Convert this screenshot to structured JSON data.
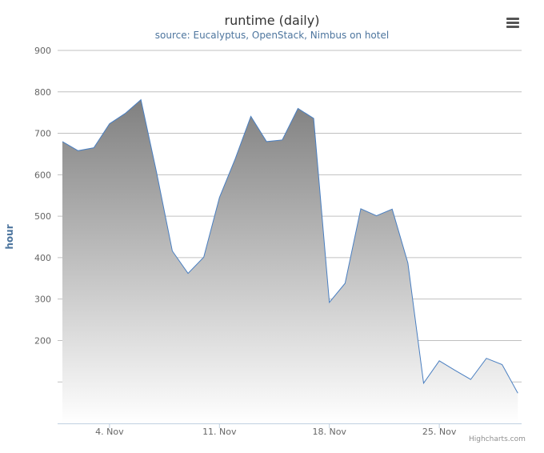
{
  "chart_data": {
    "type": "area",
    "title": "runtime (daily)",
    "subtitle": "source: Eucalyptus, OpenStack, Nimbus on hotel",
    "ylabel": "hour",
    "ylim": [
      0,
      900
    ],
    "yticks": [
      200,
      300,
      400,
      500,
      600,
      700,
      800,
      900
    ],
    "xticks": [
      {
        "day": 4,
        "label": "4. Nov"
      },
      {
        "day": 11,
        "label": "11. Nov"
      },
      {
        "day": 18,
        "label": "18. Nov"
      },
      {
        "day": 25,
        "label": "25. Nov"
      }
    ],
    "x_days": [
      1,
      2,
      3,
      4,
      5,
      6,
      7,
      8,
      9,
      10,
      11,
      12,
      13,
      14,
      15,
      16,
      17,
      18,
      19,
      20,
      21,
      22,
      23,
      24,
      25,
      26,
      27,
      28,
      29,
      30
    ],
    "x_dates": [
      "Nov 1",
      "Nov 2",
      "Nov 3",
      "Nov 4",
      "Nov 5",
      "Nov 6",
      "Nov 7",
      "Nov 8",
      "Nov 9",
      "Nov 10",
      "Nov 11",
      "Nov 12",
      "Nov 13",
      "Nov 14",
      "Nov 15",
      "Nov 16",
      "Nov 17",
      "Nov 18",
      "Nov 19",
      "Nov 20",
      "Nov 21",
      "Nov 22",
      "Nov 23",
      "Nov 24",
      "Nov 25",
      "Nov 26",
      "Nov 27",
      "Nov 28",
      "Nov 29",
      "Nov 30"
    ],
    "values": [
      680,
      658,
      665,
      723,
      748,
      781,
      605,
      416,
      362,
      401,
      545,
      638,
      741,
      680,
      684,
      760,
      736,
      292,
      338,
      518,
      501,
      517,
      387,
      97,
      151,
      128,
      106,
      157,
      142,
      73
    ],
    "grid": true,
    "colors": {
      "line": "#4a7fc1",
      "fill_top": "#808080",
      "fill_bottom": "#ffffff",
      "grid": "#c0c0c0",
      "axis": "#c0d0e0",
      "tick_text": "#666666"
    }
  },
  "ui": {
    "menu_icon": "hamburger-menu-icon",
    "credits": "Highcharts.com"
  }
}
